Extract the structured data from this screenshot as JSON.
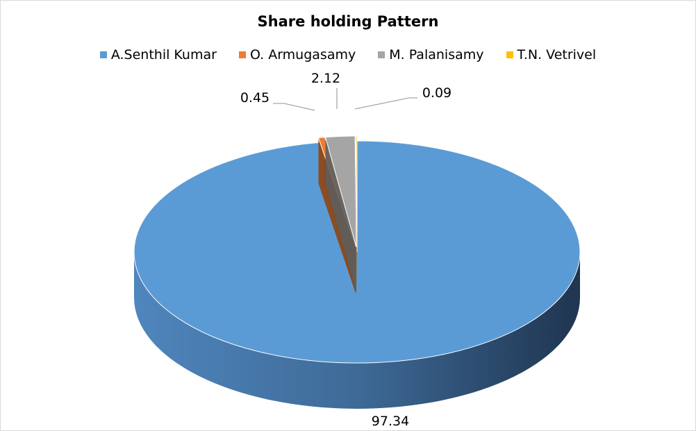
{
  "chart_data": {
    "type": "pie",
    "style": "3d-exploded",
    "title": "Share holding Pattern",
    "legend_position": "top",
    "categories": [
      "A.Senthil Kumar",
      "O. Armugasamy",
      "M. Palanisamy",
      "T.N. Vetrivel"
    ],
    "values": [
      97.34,
      0.45,
      2.12,
      0.09
    ],
    "data_labels": [
      "97.34",
      "0.45",
      "2.12",
      "0.09"
    ],
    "colors": [
      "#5b9bd5",
      "#ed7d31",
      "#a5a5a5",
      "#ffc000"
    ]
  }
}
